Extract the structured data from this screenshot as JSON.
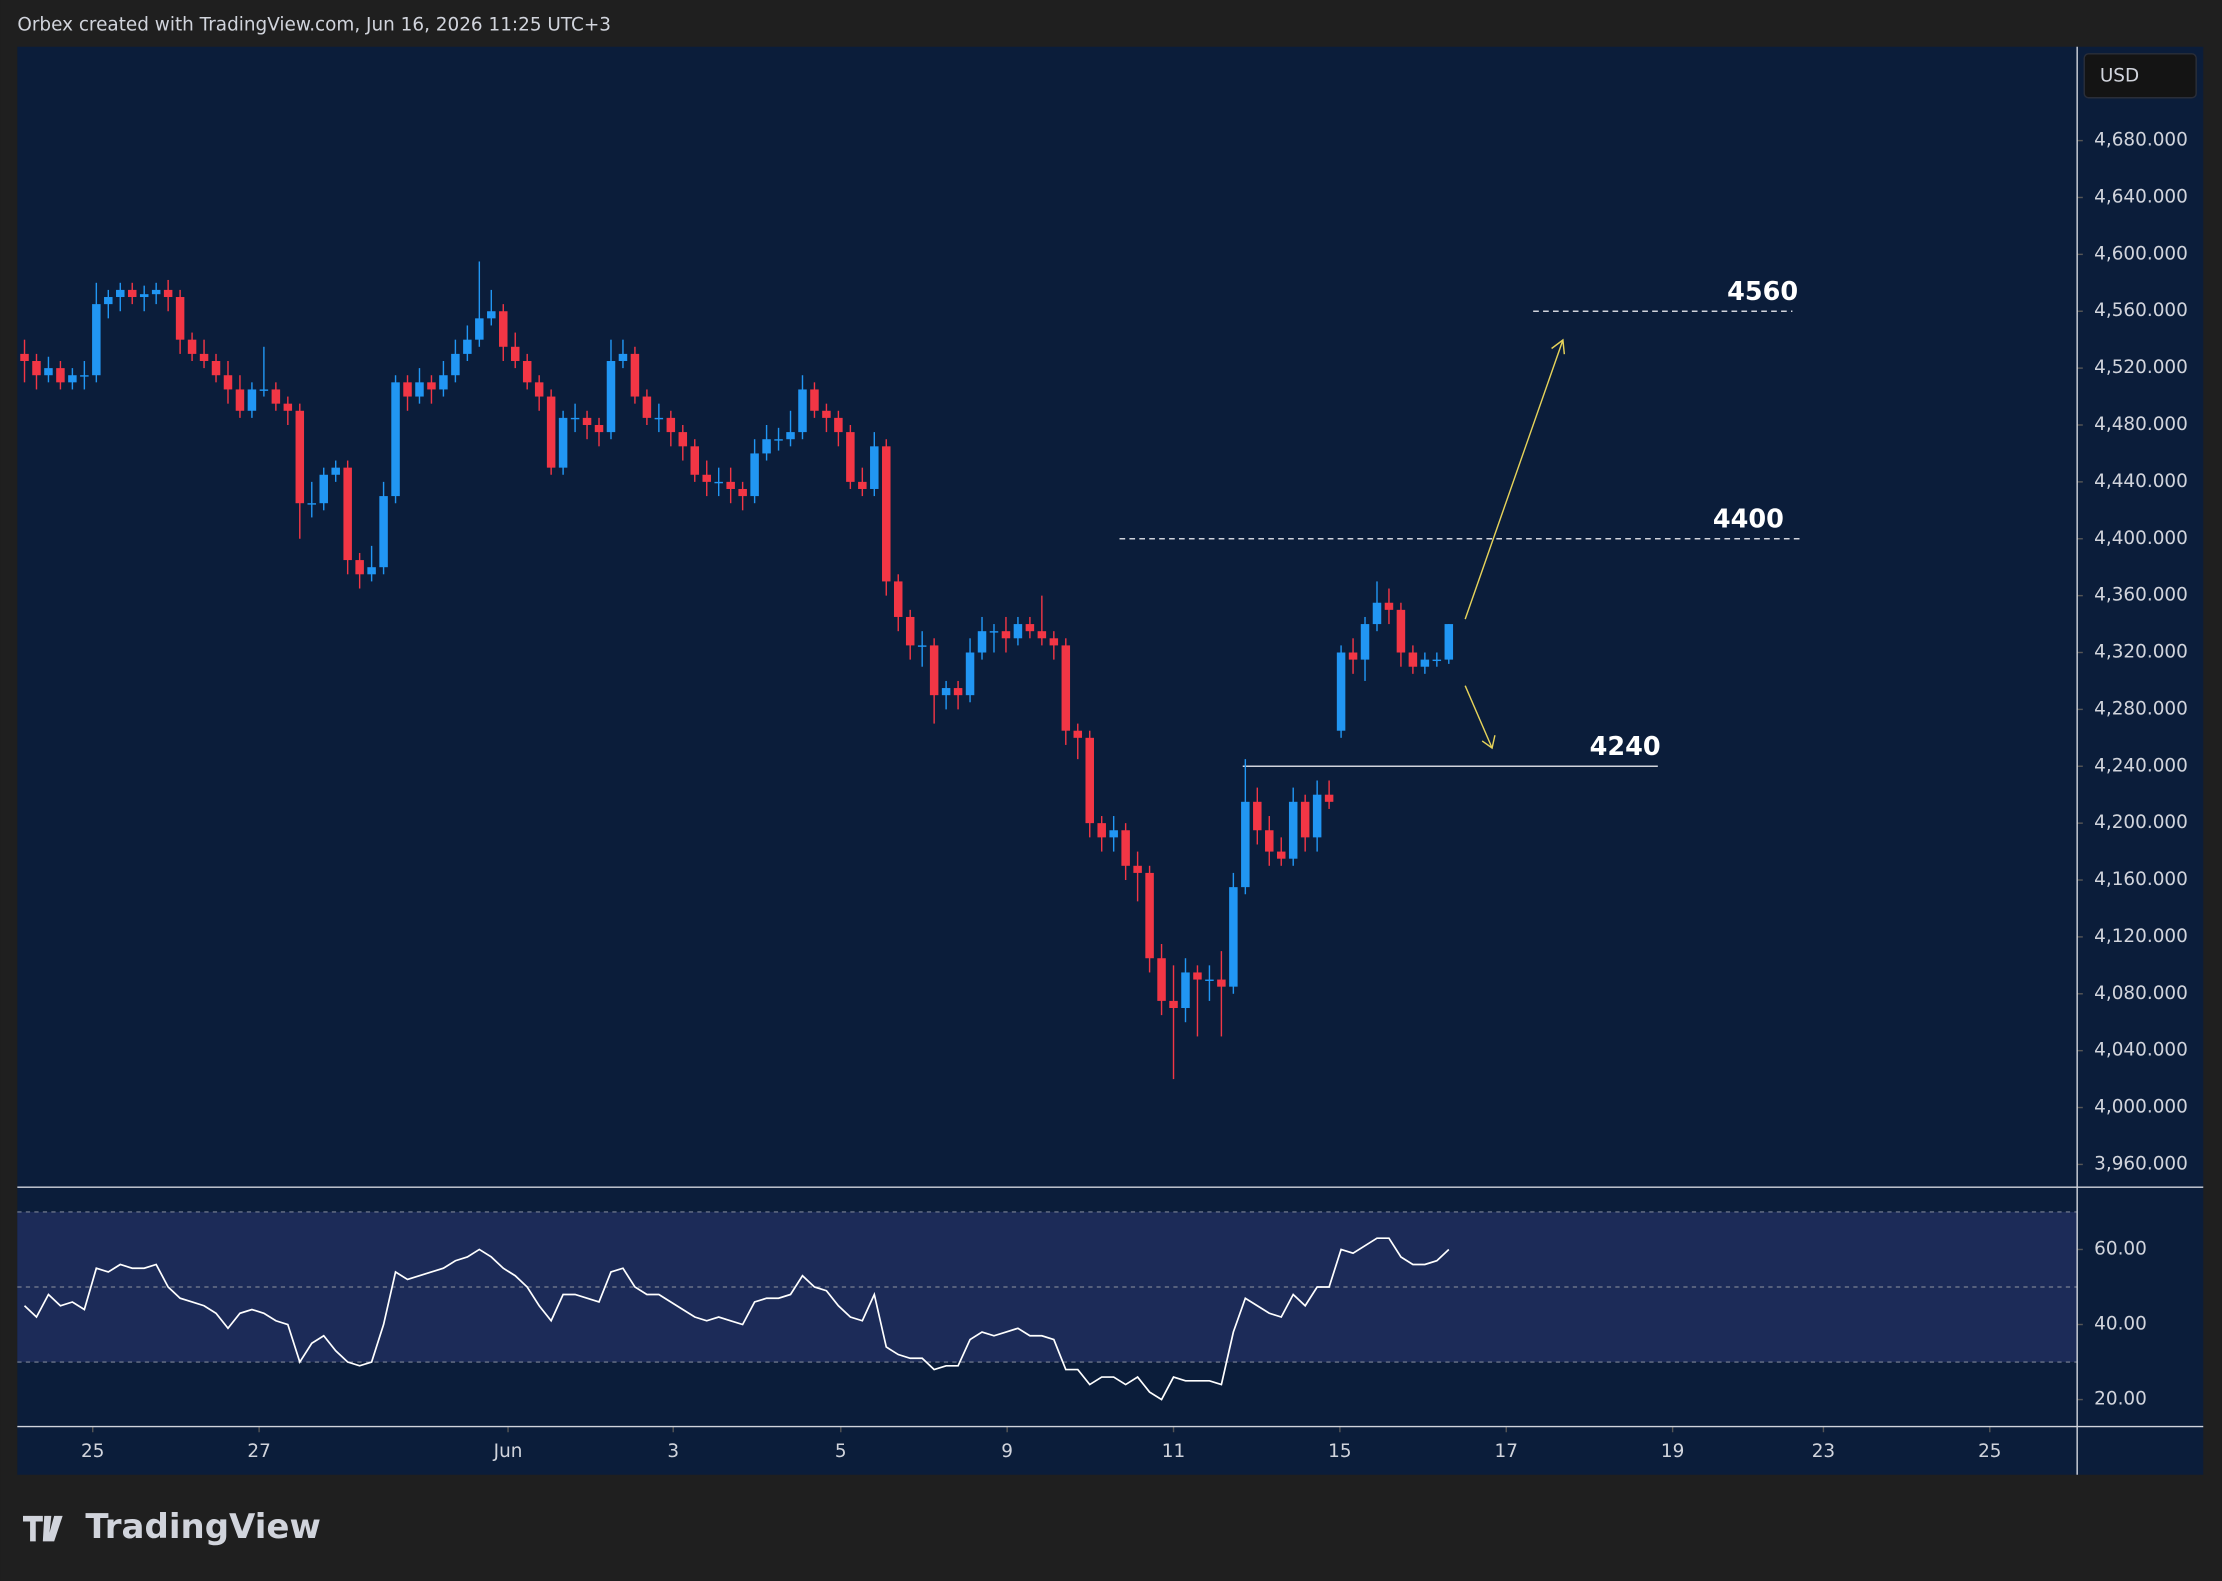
{
  "header": {
    "credit": "Orbex created with TradingView.com, Jun 16, 2026 11:25 UTC+3",
    "currency": "USD",
    "logo": "TradingView"
  },
  "chart_data": {
    "type": "candlestick",
    "up_color": "#2196f3",
    "down_color": "#f23645",
    "xlim": [
      -0.6,
      171.5
    ],
    "xticks": [
      {
        "value": 5.7,
        "label": "25"
      },
      {
        "value": 19.6,
        "label": "27"
      },
      {
        "value": 40.4,
        "label": "Jun"
      },
      {
        "value": 54.2,
        "label": "3"
      },
      {
        "value": 68.2,
        "label": "5"
      },
      {
        "value": 82.1,
        "label": "9"
      },
      {
        "value": 96,
        "label": "11"
      },
      {
        "value": 109.9,
        "label": "15"
      },
      {
        "value": 123.8,
        "label": "17"
      },
      {
        "value": 137.7,
        "label": "19"
      },
      {
        "value": 150.3,
        "label": "23"
      },
      {
        "value": 164.2,
        "label": "25"
      }
    ],
    "ylim": [
      3944,
      4746
    ],
    "yticks": [
      {
        "value": 3960,
        "label": "3,960.000"
      },
      {
        "value": 4000,
        "label": "4,000.000"
      },
      {
        "value": 4040,
        "label": "4,040.000"
      },
      {
        "value": 4080,
        "label": "4,080.000"
      },
      {
        "value": 4120,
        "label": "4,120.000"
      },
      {
        "value": 4160,
        "label": "4,160.000"
      },
      {
        "value": 4200,
        "label": "4,200.000"
      },
      {
        "value": 4240,
        "label": "4,240.000"
      },
      {
        "value": 4280,
        "label": "4,280.000"
      },
      {
        "value": 4320,
        "label": "4,320.000"
      },
      {
        "value": 4360,
        "label": "4,360.000"
      },
      {
        "value": 4400,
        "label": "4,400.000"
      },
      {
        "value": 4440,
        "label": "4,440.000"
      },
      {
        "value": 4480,
        "label": "4,480.000"
      },
      {
        "value": 4520,
        "label": "4,520.000"
      },
      {
        "value": 4560,
        "label": "4,560.000"
      },
      {
        "value": 4600,
        "label": "4,600.000"
      },
      {
        "value": 4640,
        "label": "4,640.000"
      },
      {
        "value": 4680,
        "label": "4,680.000"
      }
    ],
    "levels": [
      4560,
      4400,
      4240
    ],
    "candles": [
      [
        4530,
        4540,
        4510,
        4525
      ],
      [
        4525,
        4530,
        4505,
        4515
      ],
      [
        4515,
        4528,
        4510,
        4520
      ],
      [
        4520,
        4525,
        4505,
        4510
      ],
      [
        4510,
        4520,
        4505,
        4515
      ],
      [
        4515,
        4525,
        4505,
        4515
      ],
      [
        4515,
        4580,
        4510,
        4565
      ],
      [
        4565,
        4575,
        4555,
        4570
      ],
      [
        4570,
        4580,
        4560,
        4575
      ],
      [
        4575,
        4580,
        4565,
        4570
      ],
      [
        4570,
        4578,
        4560,
        4572
      ],
      [
        4572,
        4580,
        4565,
        4575
      ],
      [
        4575,
        4582,
        4560,
        4570
      ],
      [
        4570,
        4575,
        4530,
        4540
      ],
      [
        4540,
        4545,
        4525,
        4530
      ],
      [
        4530,
        4540,
        4520,
        4525
      ],
      [
        4525,
        4530,
        4510,
        4515
      ],
      [
        4515,
        4525,
        4495,
        4505
      ],
      [
        4505,
        4515,
        4485,
        4490
      ],
      [
        4490,
        4510,
        4485,
        4505
      ],
      [
        4505,
        4535,
        4500,
        4505
      ],
      [
        4505,
        4510,
        4490,
        4495
      ],
      [
        4495,
        4500,
        4480,
        4490
      ],
      [
        4490,
        4495,
        4400,
        4425
      ],
      [
        4425,
        4440,
        4415,
        4425
      ],
      [
        4425,
        4450,
        4420,
        4445
      ],
      [
        4445,
        4455,
        4440,
        4450
      ],
      [
        4450,
        4455,
        4375,
        4385
      ],
      [
        4385,
        4390,
        4365,
        4375
      ],
      [
        4375,
        4395,
        4370,
        4380
      ],
      [
        4380,
        4440,
        4375,
        4430
      ],
      [
        4430,
        4515,
        4425,
        4510
      ],
      [
        4510,
        4515,
        4490,
        4500
      ],
      [
        4500,
        4520,
        4495,
        4510
      ],
      [
        4510,
        4515,
        4495,
        4505
      ],
      [
        4505,
        4525,
        4500,
        4515
      ],
      [
        4515,
        4540,
        4510,
        4530
      ],
      [
        4530,
        4550,
        4525,
        4540
      ],
      [
        4540,
        4595,
        4535,
        4555
      ],
      [
        4555,
        4575,
        4550,
        4560
      ],
      [
        4560,
        4565,
        4525,
        4535
      ],
      [
        4535,
        4545,
        4520,
        4525
      ],
      [
        4525,
        4530,
        4505,
        4510
      ],
      [
        4510,
        4515,
        4490,
        4500
      ],
      [
        4500,
        4505,
        4445,
        4450
      ],
      [
        4450,
        4490,
        4445,
        4485
      ],
      [
        4485,
        4495,
        4475,
        4485
      ],
      [
        4485,
        4490,
        4470,
        4480
      ],
      [
        4480,
        4485,
        4465,
        4475
      ],
      [
        4475,
        4540,
        4470,
        4525
      ],
      [
        4525,
        4540,
        4520,
        4530
      ],
      [
        4530,
        4535,
        4495,
        4500
      ],
      [
        4500,
        4505,
        4480,
        4485
      ],
      [
        4485,
        4495,
        4475,
        4485
      ],
      [
        4485,
        4490,
        4465,
        4475
      ],
      [
        4475,
        4480,
        4455,
        4465
      ],
      [
        4465,
        4470,
        4440,
        4445
      ],
      [
        4445,
        4455,
        4430,
        4440
      ],
      [
        4440,
        4450,
        4430,
        4440
      ],
      [
        4440,
        4450,
        4425,
        4435
      ],
      [
        4435,
        4440,
        4420,
        4430
      ],
      [
        4430,
        4470,
        4425,
        4460
      ],
      [
        4460,
        4480,
        4455,
        4470
      ],
      [
        4470,
        4478,
        4462,
        4470
      ],
      [
        4470,
        4490,
        4465,
        4475
      ],
      [
        4475,
        4515,
        4470,
        4505
      ],
      [
        4505,
        4510,
        4485,
        4490
      ],
      [
        4490,
        4495,
        4475,
        4485
      ],
      [
        4485,
        4490,
        4465,
        4475
      ],
      [
        4475,
        4480,
        4435,
        4440
      ],
      [
        4440,
        4450,
        4430,
        4435
      ],
      [
        4435,
        4475,
        4430,
        4465
      ],
      [
        4465,
        4470,
        4360,
        4370
      ],
      [
        4370,
        4375,
        4335,
        4345
      ],
      [
        4345,
        4350,
        4315,
        4325
      ],
      [
        4325,
        4335,
        4310,
        4325
      ],
      [
        4325,
        4330,
        4270,
        4290
      ],
      [
        4290,
        4300,
        4280,
        4295
      ],
      [
        4295,
        4300,
        4280,
        4290
      ],
      [
        4290,
        4330,
        4285,
        4320
      ],
      [
        4320,
        4345,
        4315,
        4335
      ],
      [
        4335,
        4340,
        4320,
        4335
      ],
      [
        4335,
        4345,
        4320,
        4330
      ],
      [
        4330,
        4345,
        4325,
        4340
      ],
      [
        4340,
        4345,
        4330,
        4335
      ],
      [
        4335,
        4360,
        4325,
        4330
      ],
      [
        4330,
        4335,
        4315,
        4325
      ],
      [
        4325,
        4330,
        4255,
        4265
      ],
      [
        4265,
        4270,
        4245,
        4260
      ],
      [
        4260,
        4265,
        4190,
        4200
      ],
      [
        4200,
        4205,
        4180,
        4190
      ],
      [
        4190,
        4205,
        4180,
        4195
      ],
      [
        4195,
        4200,
        4160,
        4170
      ],
      [
        4170,
        4180,
        4145,
        4165
      ],
      [
        4165,
        4170,
        4095,
        4105
      ],
      [
        4105,
        4115,
        4065,
        4075
      ],
      [
        4075,
        4100,
        4020,
        4070
      ],
      [
        4070,
        4105,
        4060,
        4095
      ],
      [
        4095,
        4100,
        4050,
        4090
      ],
      [
        4090,
        4100,
        4075,
        4090
      ],
      [
        4090,
        4110,
        4050,
        4085
      ],
      [
        4085,
        4165,
        4080,
        4155
      ],
      [
        4155,
        4245,
        4150,
        4215
      ],
      [
        4215,
        4225,
        4185,
        4195
      ],
      [
        4195,
        4205,
        4170,
        4180
      ],
      [
        4180,
        4190,
        4170,
        4175
      ],
      [
        4175,
        4225,
        4170,
        4215
      ],
      [
        4215,
        4220,
        4180,
        4190
      ],
      [
        4190,
        4230,
        4180,
        4220
      ],
      [
        4220,
        4230,
        4210,
        4215
      ],
      [
        4265,
        4325,
        4260,
        4320
      ],
      [
        4320,
        4330,
        4305,
        4315
      ],
      [
        4315,
        4345,
        4300,
        4340
      ],
      [
        4340,
        4370,
        4335,
        4355
      ],
      [
        4355,
        4365,
        4340,
        4350
      ],
      [
        4350,
        4355,
        4310,
        4320
      ],
      [
        4320,
        4325,
        4305,
        4310
      ],
      [
        4310,
        4320,
        4305,
        4315
      ],
      [
        4315,
        4320,
        4310,
        4315
      ],
      [
        4315,
        4340,
        4312,
        4340
      ]
    ],
    "rsi": {
      "color": "#ffffff",
      "ylim": [
        12.8,
        76.6
      ],
      "yticks": [
        {
          "value": 20,
          "label": "20.00"
        },
        {
          "value": 40,
          "label": "40.00"
        },
        {
          "value": 60,
          "label": "60.00"
        }
      ],
      "bands": [
        30,
        50,
        70
      ],
      "values": [
        45,
        42,
        48,
        45,
        46,
        44,
        55,
        54,
        56,
        55,
        55,
        56,
        50,
        47,
        46,
        45,
        43,
        39,
        43,
        44,
        43,
        41,
        40,
        30,
        35,
        37,
        33,
        30,
        29,
        30,
        40,
        54,
        52,
        53,
        54,
        55,
        57,
        58,
        60,
        58,
        55,
        53,
        50,
        45,
        41,
        48,
        48,
        47,
        46,
        54,
        55,
        50,
        48,
        48,
        46,
        44,
        42,
        41,
        42,
        41,
        40,
        46,
        47,
        47,
        48,
        53,
        50,
        49,
        45,
        42,
        41,
        48,
        34,
        32,
        31,
        31,
        28,
        29,
        29,
        36,
        38,
        37,
        38,
        39,
        37,
        37,
        36,
        28,
        28,
        24,
        26,
        26,
        24,
        26,
        22,
        20,
        26,
        25,
        25,
        25,
        24,
        38,
        47,
        45,
        43,
        42,
        48,
        45,
        50,
        50,
        60,
        59,
        61,
        63,
        63,
        58,
        56,
        56,
        57,
        60
      ]
    }
  }
}
